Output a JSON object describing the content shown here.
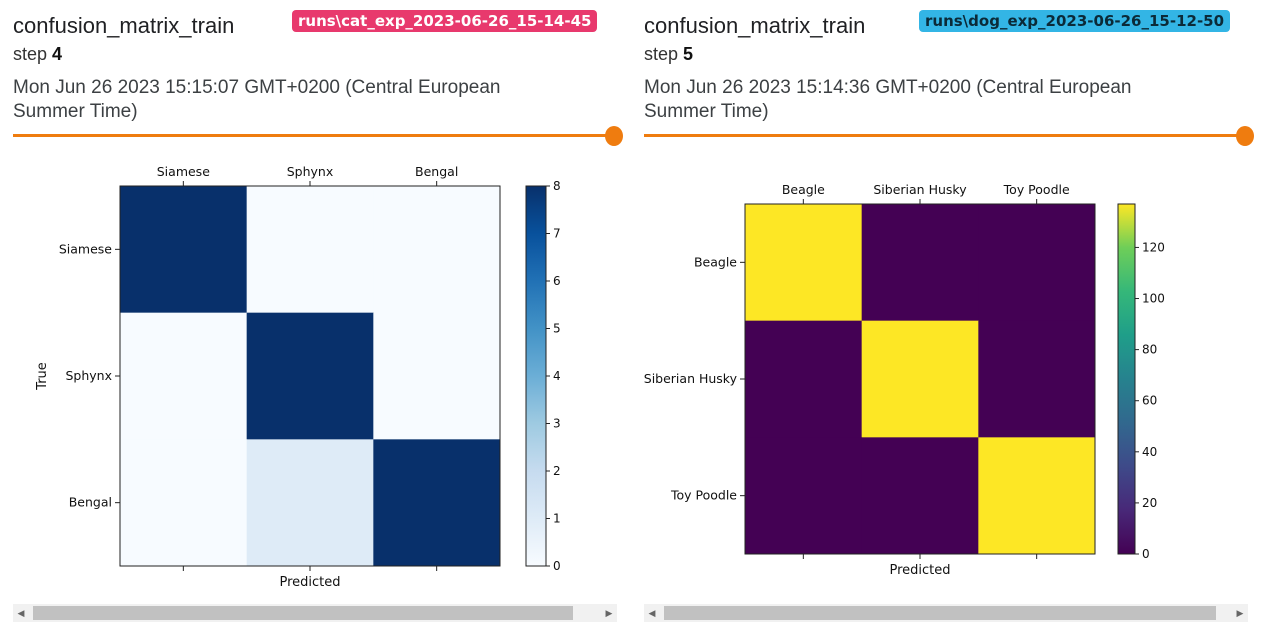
{
  "colors": {
    "slider": "#ef7c0f"
  },
  "cards": [
    {
      "title": "confusion_matrix_train",
      "run_tag": "runs\\cat_exp_2023-06-26_15-14-45",
      "run_color": "#e8396d",
      "step_label": "step",
      "step": "4",
      "wall_time": "Mon Jun 26 2023 15:15:07 GMT+0200 (Central European Summer Time)",
      "chart_data": {
        "type": "heatmap",
        "colormap": "Blues",
        "labels": [
          "Siamese",
          "Sphynx",
          "Bengal"
        ],
        "matrix": [
          [
            8,
            0,
            0
          ],
          [
            0,
            8,
            0
          ],
          [
            0,
            1,
            8
          ]
        ],
        "xlabel": "Predicted",
        "ylabel": "True",
        "colorbar_ticks": [
          "0",
          "1",
          "2",
          "3",
          "4",
          "5",
          "6",
          "7",
          "8"
        ],
        "vmin": 0,
        "vmax": 8
      }
    },
    {
      "title": "confusion_matrix_train",
      "run_tag": "runs\\dog_exp_2023-06-26_15-12-50",
      "run_color": "#33b5e5",
      "step_label": "step",
      "step": "5",
      "wall_time": "Mon Jun 26 2023 15:14:36 GMT+0200 (Central European Summer Time)",
      "chart_data": {
        "type": "heatmap",
        "colormap": "viridis",
        "labels": [
          "Beagle",
          "Siberian Husky",
          "Toy Poodle"
        ],
        "matrix": [
          [
            137,
            0,
            0
          ],
          [
            0,
            137,
            0
          ],
          [
            0,
            0,
            137
          ]
        ],
        "xlabel": "Predicted",
        "ylabel": "",
        "colorbar_ticks": [
          "0",
          "20",
          "40",
          "60",
          "80",
          "100",
          "120"
        ],
        "vmin": 0,
        "vmax": 137
      }
    }
  ]
}
